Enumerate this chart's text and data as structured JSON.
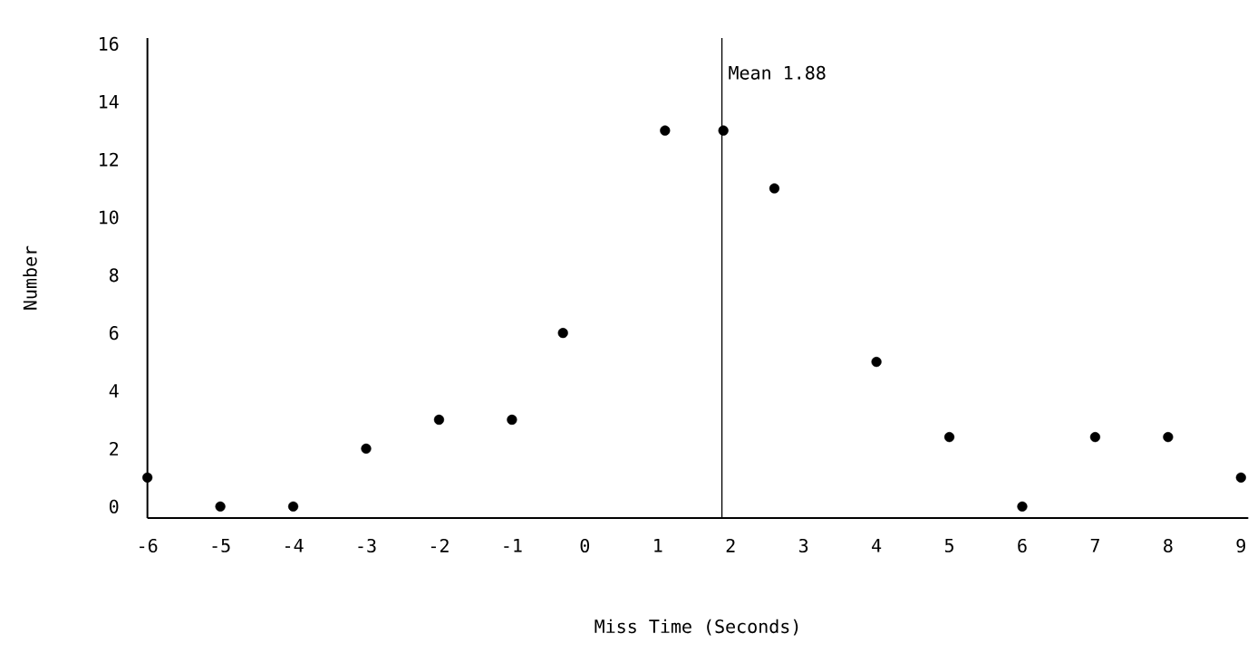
{
  "chart_data": {
    "type": "scatter",
    "xlabel": "Miss Time (Seconds)",
    "ylabel": "Number",
    "x": [
      -6,
      -5,
      -4,
      -3,
      -2,
      -1,
      -0.3,
      1.1,
      1.9,
      2.6,
      4,
      5,
      6,
      7,
      8,
      9
    ],
    "series": [
      {
        "color": "#000000",
        "values": [
          1,
          0,
          0,
          2,
          3,
          3,
          6,
          13,
          13,
          11,
          5,
          2.4,
          0,
          2.4,
          2.4,
          1
        ]
      }
    ],
    "xlim": [
      -6,
      9.1
    ],
    "ylim": [
      -0.4,
      16.2
    ],
    "xticks": [
      -6,
      -5,
      -4,
      -3,
      -2,
      -1,
      0,
      1,
      2,
      3,
      4,
      5,
      6,
      7,
      8,
      9
    ],
    "yticks": [
      0,
      2,
      4,
      6,
      8,
      10,
      12,
      14,
      16
    ],
    "ref_lines": [
      {
        "axis": "x",
        "value": 1.88,
        "label": "Mean 1.88",
        "color": "#000000"
      }
    ],
    "grid": false,
    "marker": "circle"
  }
}
